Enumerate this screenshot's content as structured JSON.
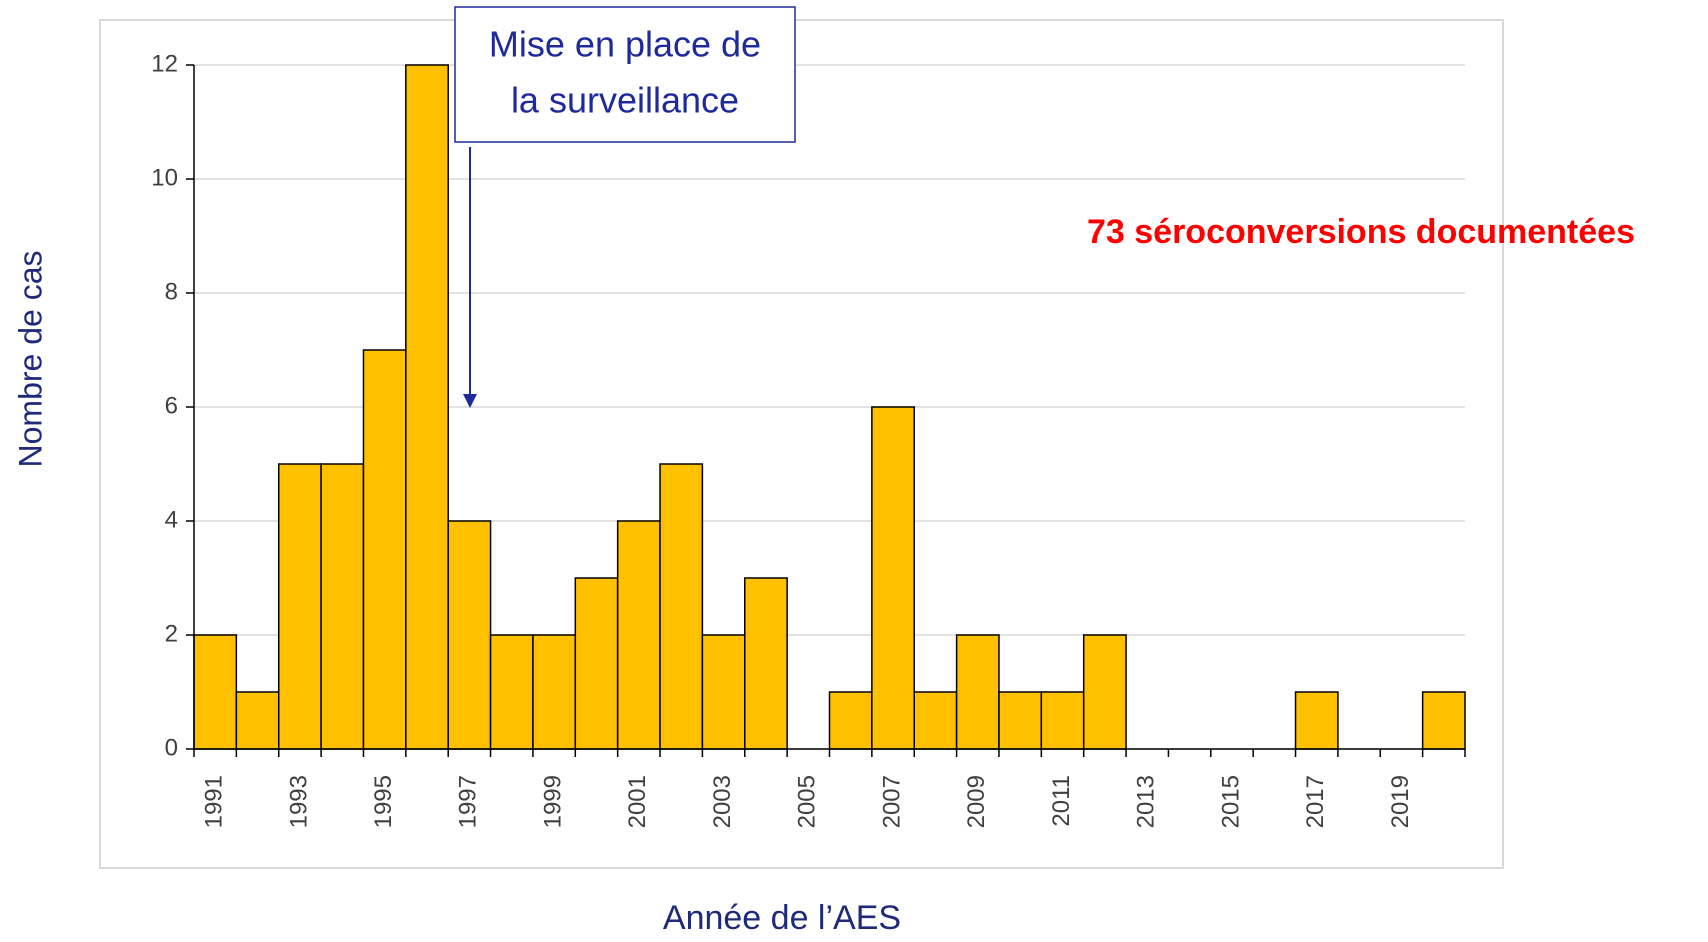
{
  "chart_data": {
    "type": "bar",
    "categories": [
      "1991",
      null,
      "1993",
      null,
      "1995",
      null,
      "1997",
      null,
      "1999",
      null,
      "2001",
      null,
      "2003",
      null,
      "2005",
      null,
      "2007",
      null,
      "2009",
      null,
      "2011",
      null,
      "2013",
      null,
      "2015",
      null,
      "2017",
      null,
      "2019",
      null
    ],
    "values": [
      2,
      1,
      5,
      5,
      7,
      12,
      4,
      2,
      2,
      3,
      4,
      5,
      2,
      3,
      0,
      1,
      6,
      1,
      2,
      1,
      1,
      2,
      0,
      0,
      0,
      0,
      1,
      0,
      0,
      1
    ],
    "color": "#FFC000",
    "ylim": [
      0,
      12
    ],
    "yticks": [
      0,
      2,
      4,
      6,
      8,
      10,
      12
    ],
    "grid": true,
    "y_label": "Nombre de cas",
    "x_label": "Année de l’AES",
    "annotation": [
      "Mise en place de",
      "la surveillance"
    ],
    "note": "73 séroconversions documentées"
  }
}
